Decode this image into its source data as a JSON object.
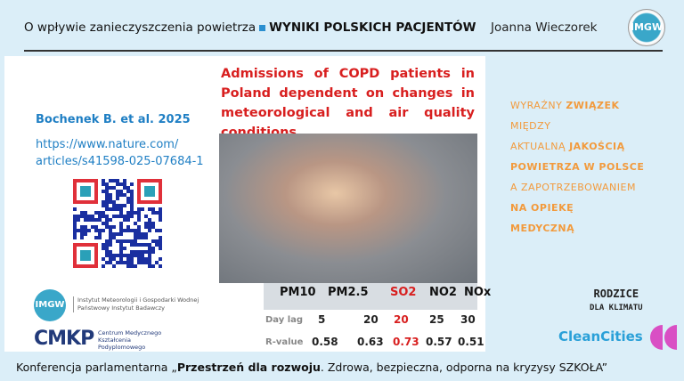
{
  "header": {
    "title_part1": "O wpływie zanieczyszczenia powietrza",
    "title_part2": "WYNIKI POLSKICH PACJENTÓW",
    "author": "Joanna Wieczorek",
    "logo": "IMGW"
  },
  "citation": {
    "authors": "Bochenek B. et al. 2025",
    "url_line1": "https://www.nature.com/",
    "url_line2": "articles/s41598-025-07684-1"
  },
  "slide_title": "Admissions of COPD patients in Poland dependent on changes in meteorological and air quality conditions",
  "table": {
    "columns": [
      "PM10",
      "PM2.5",
      "SO2",
      "NO2",
      "NOx"
    ],
    "rows": [
      {
        "label": "Day lag",
        "values": [
          "5",
          "20",
          "20",
          "25",
          "30"
        ]
      },
      {
        "label": "R-value",
        "values": [
          "0.58",
          "0.63",
          "0.73",
          "0.57",
          "0.51"
        ]
      }
    ],
    "highlight_column": "SO2"
  },
  "logos": {
    "imgw": "IMGW",
    "imgw_line1": "Instytut Meteorologii i Gospodarki Wodnej",
    "imgw_line2": "Państwowy Instytut Badawczy",
    "cmkp": "CMKP",
    "cmkp_line1": "Centrum Medycznego",
    "cmkp_line2": "Kształcenia",
    "cmkp_line3": "Podyplomowego",
    "rodzice_line1": "RODZICE",
    "rodzice_line2": "DLA KLIMATU",
    "cleancities": "CleanCities"
  },
  "side": {
    "l1a": "WYRAŹNY ",
    "l1b": "ZWIĄZEK",
    "l2": "MIĘDZY",
    "l3a": "AKTUALNĄ ",
    "l3b": "JAKOŚCIĄ",
    "l4": "POWIETRZA W POLSCE",
    "l5": "A  ZAPOTRZEBOWANIEM",
    "l6": "NA OPIEKĘ",
    "l7": "MEDYCZNĄ"
  },
  "footer": {
    "a": "Konferencja parlamentarna „",
    "b": "Przestrzeń dla rozwoju",
    "c": ". Zdrowa, bezpieczna, odporna na kryzysy SZKOŁA”"
  },
  "colors": {
    "background": "#dbeef8",
    "accent_red": "#d81f1f",
    "accent_orange": "#f29a3c",
    "link_blue": "#1f7fc4"
  }
}
